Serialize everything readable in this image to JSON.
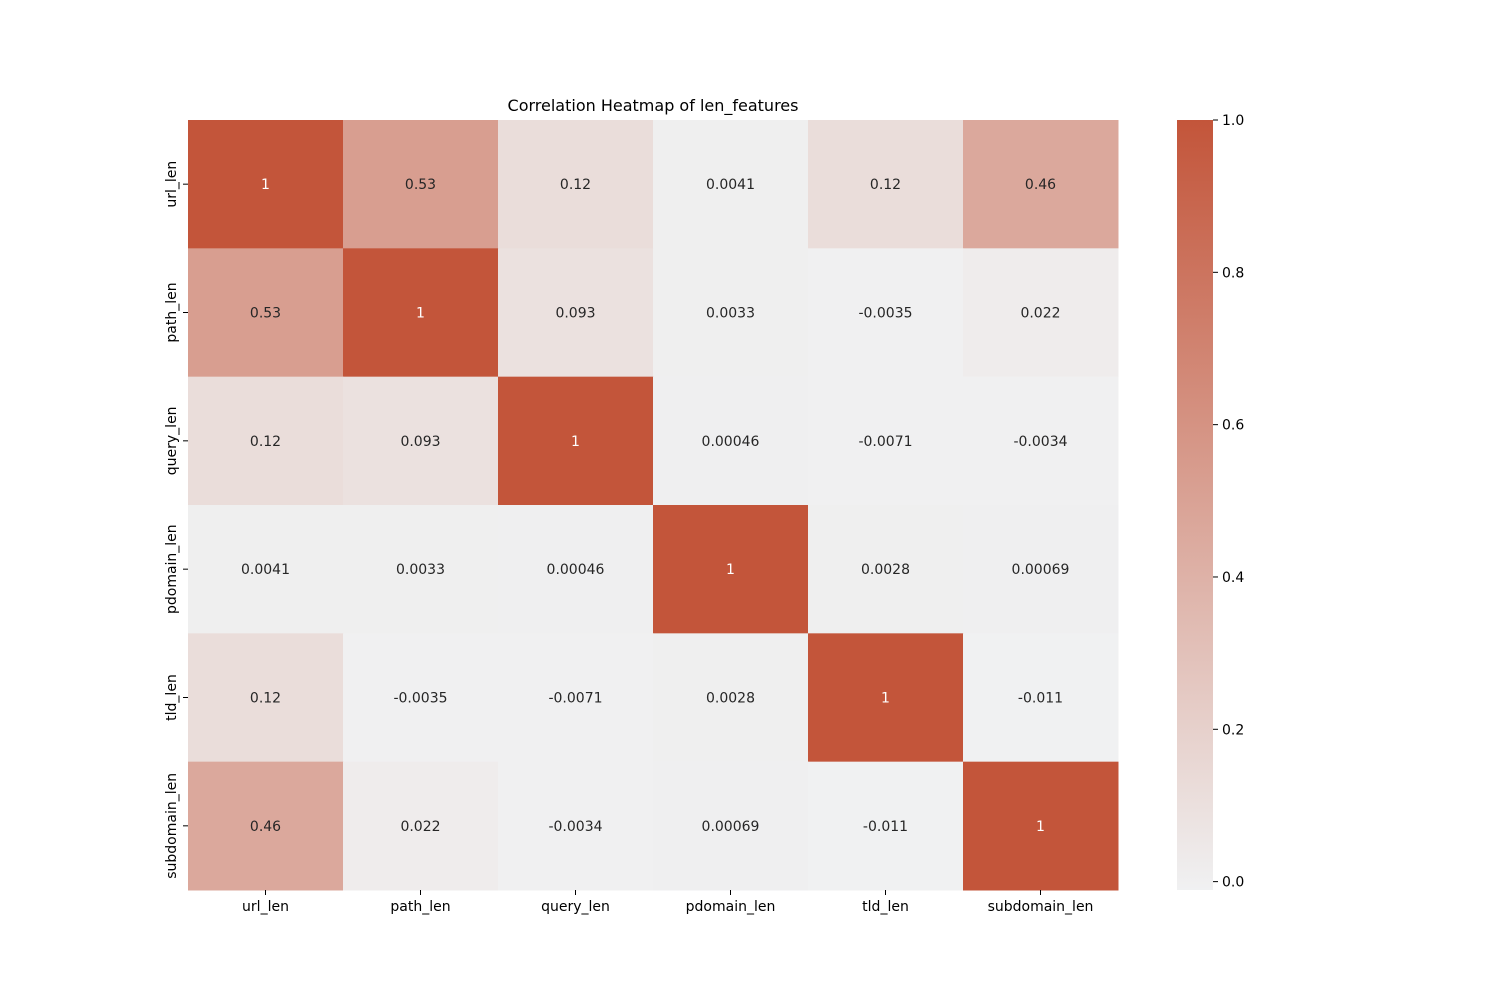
{
  "chart_data": {
    "type": "heatmap",
    "title": "Correlation Heatmap of len_features",
    "xlabel": "",
    "ylabel": "",
    "x_categories": [
      "url_len",
      "path_len",
      "query_len",
      "pdomain_len",
      "tld_len",
      "subdomain_len"
    ],
    "y_categories": [
      "url_len",
      "path_len",
      "query_len",
      "pdomain_len",
      "tld_len",
      "subdomain_len"
    ],
    "values": [
      [
        1,
        0.53,
        0.12,
        0.0041,
        0.12,
        0.46
      ],
      [
        0.53,
        1,
        0.093,
        0.0033,
        -0.0035,
        0.022
      ],
      [
        0.12,
        0.093,
        1,
        0.00046,
        -0.0071,
        -0.0034
      ],
      [
        0.0041,
        0.0033,
        0.00046,
        1,
        0.0028,
        0.00069
      ],
      [
        0.12,
        -0.0035,
        -0.0071,
        0.0028,
        1,
        -0.011
      ],
      [
        0.46,
        0.022,
        -0.0034,
        0.00069,
        -0.011,
        1
      ]
    ],
    "cell_labels": [
      [
        "1",
        "0.53",
        "0.12",
        "0.0041",
        "0.12",
        "0.46"
      ],
      [
        "0.53",
        "1",
        "0.093",
        "0.0033",
        "-0.0035",
        "0.022"
      ],
      [
        "0.12",
        "0.093",
        "1",
        "0.00046",
        "-0.0071",
        "-0.0034"
      ],
      [
        "0.0041",
        "0.0033",
        "0.00046",
        "1",
        "0.0028",
        "0.00069"
      ],
      [
        "0.12",
        "-0.0035",
        "-0.0071",
        "0.0028",
        "1",
        "-0.011"
      ],
      [
        "0.46",
        "0.022",
        "-0.0034",
        "0.00069",
        "-0.011",
        "1"
      ]
    ],
    "colorbar": {
      "range": [
        -0.011,
        1
      ],
      "ticks": [
        0.0,
        0.2,
        0.4,
        0.6,
        0.8,
        1.0
      ],
      "tick_labels": [
        "0.0",
        "0.2",
        "0.4",
        "0.6",
        "0.8",
        "1.0"
      ],
      "color_low": "#f0f1f2",
      "color_high": "#c3553a"
    },
    "annotation_colors": {
      "dark": "#262626",
      "light": "#ffffff"
    },
    "grid": false,
    "legend": "colorbar-right"
  }
}
